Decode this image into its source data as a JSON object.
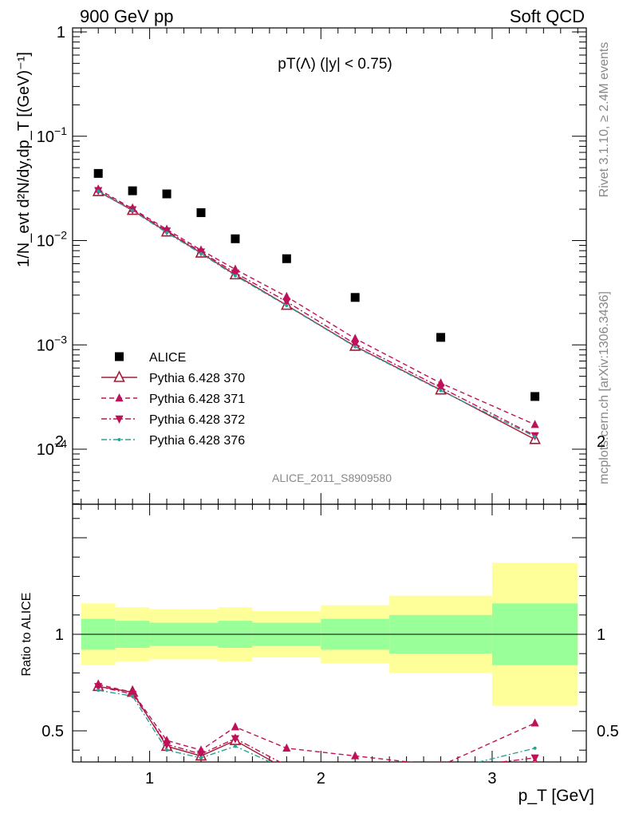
{
  "header": {
    "left": "900 GeV pp",
    "right": "Soft QCD"
  },
  "side": {
    "rivet": "Rivet 3.1.10, ≥ 2.4M events",
    "mcplots": "mcplots.cern.ch [arXiv:1306.3436]"
  },
  "chart_data": [
    {
      "type": "scatter",
      "title": "pT(Λ) (|y| < 0.75)",
      "analysis_label": "ALICE_2011_S8909580",
      "ylabel": "1/N_evt d²N/dy,dp_T [(GeV)⁻¹]",
      "yscale": "log",
      "ylim": [
        3e-05,
        1
      ],
      "xlim": [
        0.55,
        3.55
      ],
      "yticks": [
        {
          "value": 1,
          "label": "1"
        },
        {
          "value": 0.1,
          "base": "10",
          "exp": "−1"
        },
        {
          "value": 0.01,
          "base": "10",
          "exp": "−2"
        },
        {
          "value": 0.001,
          "base": "10",
          "exp": "−3"
        },
        {
          "value": 0.0001,
          "base": "10",
          "exp": "−4"
        }
      ],
      "x": [
        0.7,
        0.9,
        1.1,
        1.3,
        1.5,
        1.8,
        2.2,
        2.7,
        3.25
      ],
      "series": [
        {
          "name": "ALICE",
          "color": "#000000",
          "marker": "square",
          "style": "none",
          "values": [
            0.044,
            0.03,
            0.028,
            0.0185,
            0.0104,
            0.0067,
            0.00285,
            0.00118,
            0.00032
          ]
        },
        {
          "name": "Pythia 6.428 370",
          "color": "#a31b35",
          "marker": "triangle-up-open",
          "style": "solid",
          "values": [
            0.0295,
            0.0195,
            0.0121,
            0.0076,
            0.0047,
            0.0024,
            0.00097,
            0.00037,
            0.000124
          ]
        },
        {
          "name": "Pythia 6.428 371",
          "color": "#c0105a",
          "marker": "triangle-up",
          "style": "dashed",
          "values": [
            0.031,
            0.0202,
            0.0128,
            0.0081,
            0.0053,
            0.0029,
            0.00115,
            0.00043,
            0.000172
          ]
        },
        {
          "name": "Pythia 6.428 372",
          "color": "#c0105a",
          "marker": "triangle-down",
          "style": "dashdot",
          "values": [
            0.0302,
            0.0198,
            0.0124,
            0.0078,
            0.0049,
            0.0026,
            0.00102,
            0.00039,
            0.000135
          ]
        },
        {
          "name": "Pythia 6.428 376",
          "color": "#2aa198",
          "marker": "dot",
          "style": "dashdot",
          "values": [
            0.0298,
            0.0193,
            0.0119,
            0.0075,
            0.0046,
            0.00238,
            0.00096,
            0.000365,
            0.000132
          ]
        }
      ]
    },
    {
      "type": "line",
      "ylabel": "Ratio to ALICE",
      "xlabel": "p_T [GeV]",
      "ylim": [
        0.34,
        2.33
      ],
      "xlim": [
        0.55,
        3.55
      ],
      "xticks": [
        1,
        2,
        3
      ],
      "yticks": [
        0.5,
        1,
        2
      ],
      "bands": {
        "edges": [
          0.6,
          0.8,
          1.0,
          1.2,
          1.4,
          1.6,
          2.0,
          2.4,
          3.0,
          3.5
        ],
        "stat_sys_inner": [
          0.92,
          0.93,
          0.94,
          0.94,
          0.93,
          0.94,
          0.92,
          0.9,
          0.84
        ],
        "stat_sys_inner_hi": [
          1.08,
          1.07,
          1.06,
          1.06,
          1.07,
          1.06,
          1.08,
          1.1,
          1.16
        ],
        "total_lo": [
          0.84,
          0.86,
          0.87,
          0.87,
          0.86,
          0.88,
          0.85,
          0.8,
          0.63
        ],
        "total_hi": [
          1.16,
          1.14,
          1.13,
          1.13,
          1.14,
          1.12,
          1.15,
          1.2,
          1.37
        ],
        "inner_color": "#99ff99",
        "outer_color": "#ffff99"
      },
      "x": [
        0.7,
        0.9,
        1.1,
        1.3,
        1.5,
        1.8,
        2.2,
        2.7,
        3.25
      ],
      "series": [
        {
          "name": "Pythia 6.428 370",
          "values": [
            0.73,
            0.7,
            0.42,
            0.37,
            0.45,
            0.3,
            0.28,
            0.29,
            0.33
          ]
        },
        {
          "name": "Pythia 6.428 371",
          "values": [
            0.74,
            0.7,
            0.45,
            0.4,
            0.52,
            0.41,
            0.37,
            0.32,
            0.54
          ]
        },
        {
          "name": "Pythia 6.428 372",
          "values": [
            0.73,
            0.69,
            0.43,
            0.38,
            0.46,
            0.32,
            0.3,
            0.3,
            0.36
          ]
        },
        {
          "name": "Pythia 6.428 376",
          "values": [
            0.71,
            0.68,
            0.4,
            0.36,
            0.42,
            0.3,
            0.28,
            0.29,
            0.41
          ]
        }
      ]
    }
  ]
}
